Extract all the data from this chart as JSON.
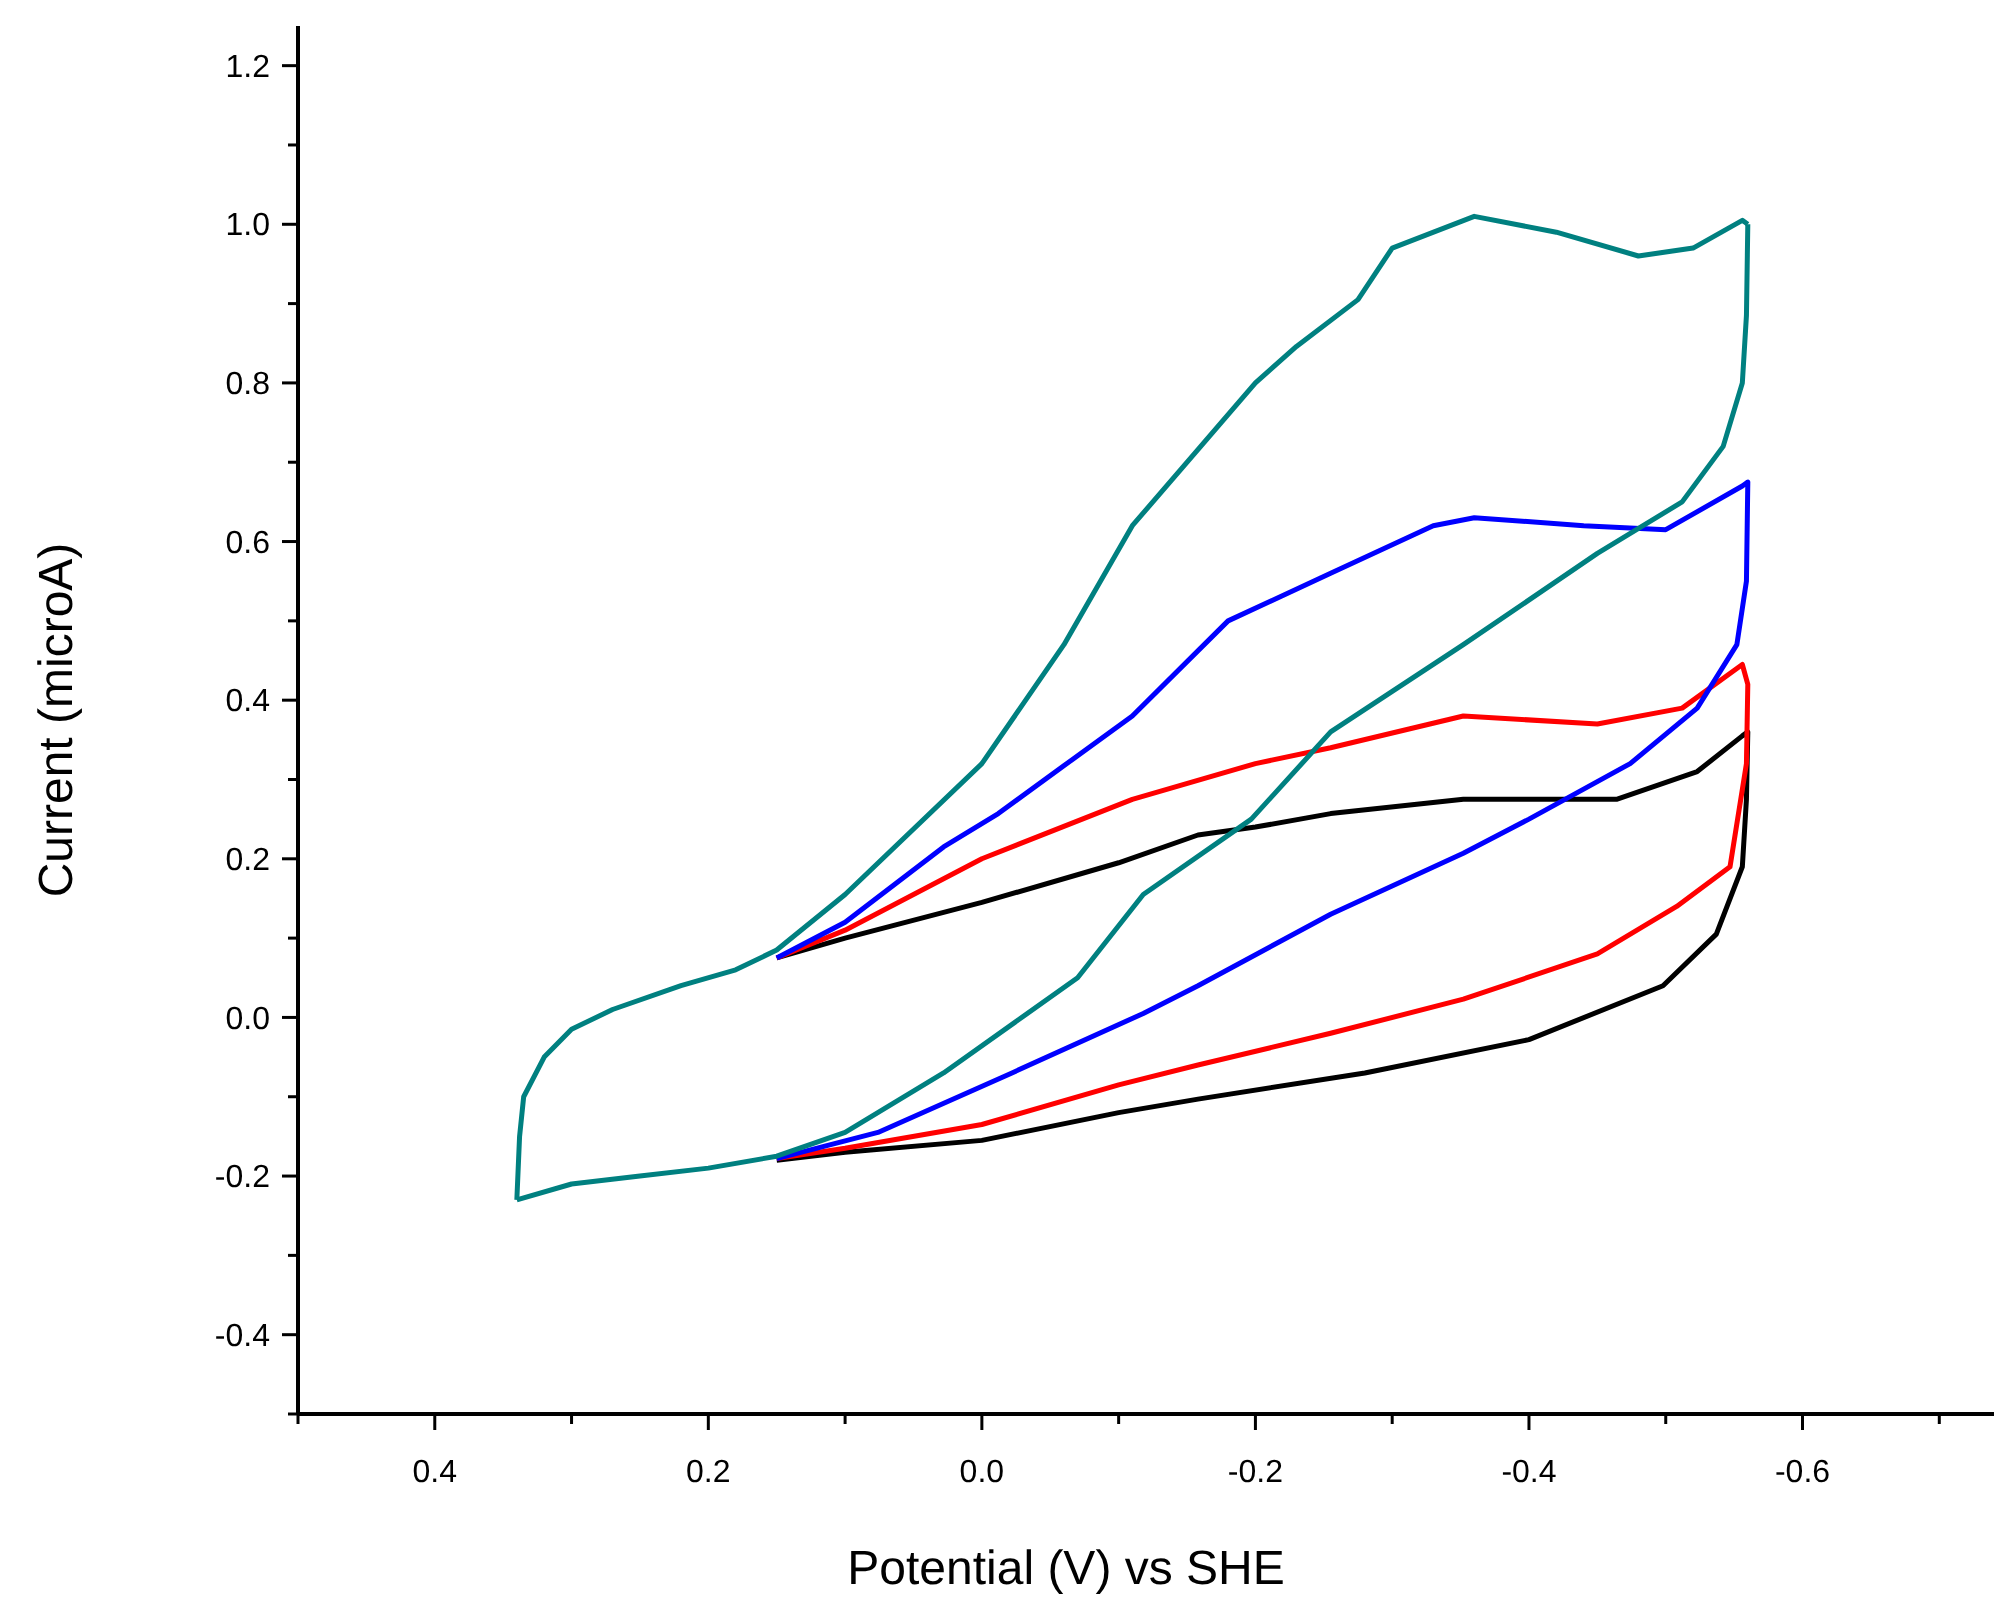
{
  "chart_data": {
    "type": "line",
    "xlabel": "Potential (V) vs SHE",
    "ylabel": "Current (microA)",
    "xlim": [
      0.5,
      -0.74
    ],
    "ylim": [
      -0.5,
      1.25
    ],
    "xticks": [
      {
        "value": 0.5,
        "label": null
      },
      0.4,
      {
        "value": 0.3,
        "label": null
      },
      0.2,
      {
        "value": 0.1,
        "label": null
      },
      {
        "value": 0.0,
        "label": "0.0"
      },
      {
        "value": -0.1,
        "label": null
      },
      -0.2,
      {
        "value": -0.3,
        "label": null
      },
      -0.4,
      {
        "value": -0.5,
        "label": null
      },
      -0.6,
      {
        "value": -0.7,
        "label": null
      }
    ],
    "yticks": [
      {
        "value": -0.5,
        "label": null
      },
      -0.4,
      {
        "value": -0.3,
        "label": null
      },
      -0.2,
      {
        "value": -0.1,
        "label": null
      },
      {
        "value": 0.0,
        "label": "0.0"
      },
      {
        "value": 0.1,
        "label": null
      },
      0.2,
      {
        "value": 0.3,
        "label": null
      },
      0.4,
      {
        "value": 0.5,
        "label": null
      },
      0.6,
      {
        "value": 0.7,
        "label": null
      },
      0.8,
      {
        "value": 0.9,
        "label": null
      },
      {
        "value": 1.0,
        "label": "1.0"
      },
      {
        "value": 1.1,
        "label": null
      },
      1.2
    ],
    "grid": false,
    "series": [
      {
        "color": "#000000",
        "x": [
          0.15,
          0.1,
          0.0,
          -0.1,
          -0.158,
          -0.2,
          -0.255,
          -0.352,
          -0.464,
          -0.523,
          -0.556,
          -0.56,
          -0.559,
          -0.556,
          -0.537,
          -0.498,
          -0.4,
          -0.28,
          -0.158,
          -0.1,
          0.0,
          0.1,
          0.15
        ],
        "values": [
          0.075,
          0.1,
          0.145,
          0.195,
          0.23,
          0.24,
          0.257,
          0.275,
          0.275,
          0.31,
          0.355,
          0.36,
          0.275,
          0.19,
          0.105,
          0.04,
          -0.028,
          -0.07,
          -0.103,
          -0.12,
          -0.155,
          -0.17,
          -0.18
        ]
      },
      {
        "color": "#ff0000",
        "x": [
          0.15,
          0.1,
          0.0,
          -0.11,
          -0.2,
          -0.255,
          -0.352,
          -0.45,
          -0.512,
          -0.556,
          -0.56,
          -0.559,
          -0.547,
          -0.508,
          -0.45,
          -0.352,
          -0.255,
          -0.158,
          -0.1,
          0.0,
          0.1,
          0.15
        ],
        "values": [
          0.075,
          0.11,
          0.2,
          0.275,
          0.32,
          0.34,
          0.38,
          0.37,
          0.39,
          0.445,
          0.42,
          0.32,
          0.19,
          0.14,
          0.08,
          0.023,
          -0.02,
          -0.06,
          -0.085,
          -0.135,
          -0.165,
          -0.178
        ]
      },
      {
        "color": "#0000ff",
        "x": [
          0.15,
          0.1,
          0.028,
          -0.012,
          -0.066,
          -0.11,
          -0.18,
          -0.255,
          -0.33,
          -0.36,
          -0.44,
          -0.5,
          -0.556,
          -0.56,
          -0.559,
          -0.552,
          -0.523,
          -0.474,
          -0.4,
          -0.352,
          -0.255,
          -0.158,
          -0.118,
          -0.022,
          0.076,
          0.15
        ],
        "values": [
          0.075,
          0.12,
          0.215,
          0.257,
          0.325,
          0.38,
          0.5,
          0.56,
          0.62,
          0.63,
          0.62,
          0.615,
          0.67,
          0.675,
          0.55,
          0.47,
          0.39,
          0.32,
          0.25,
          0.207,
          0.13,
          0.04,
          0.005,
          -0.07,
          -0.145,
          -0.178
        ]
      },
      {
        "color": "#008080",
        "x": [
          0.34,
          0.338,
          0.335,
          0.32,
          0.3,
          0.27,
          0.22,
          0.18,
          0.15,
          0.1,
          0.0,
          -0.06,
          -0.11,
          -0.16,
          -0.2,
          -0.23,
          -0.275,
          -0.3,
          -0.36,
          -0.42,
          -0.48,
          -0.52,
          -0.556,
          -0.56
        ],
        "values": [
          -0.23,
          -0.15,
          -0.1,
          -0.05,
          -0.015,
          0.01,
          0.04,
          0.06,
          0.085,
          0.155,
          0.32,
          0.47,
          0.62,
          0.72,
          0.8,
          0.846,
          0.905,
          0.97,
          1.01,
          0.99,
          0.96,
          0.97,
          1.005,
          1.0
        ]
      },
      {
        "color": "#008080",
        "x": [
          -0.56,
          -0.559,
          -0.556,
          -0.542,
          -0.512,
          -0.45,
          -0.352,
          -0.255,
          -0.197,
          -0.118,
          -0.07,
          0.028,
          0.1,
          0.15,
          0.2,
          0.25,
          0.3,
          0.34
        ],
        "values": [
          1.0,
          0.885,
          0.8,
          0.72,
          0.65,
          0.585,
          0.47,
          0.36,
          0.25,
          0.155,
          0.05,
          -0.07,
          -0.145,
          -0.175,
          -0.19,
          -0.2,
          -0.21,
          -0.23
        ]
      }
    ]
  }
}
